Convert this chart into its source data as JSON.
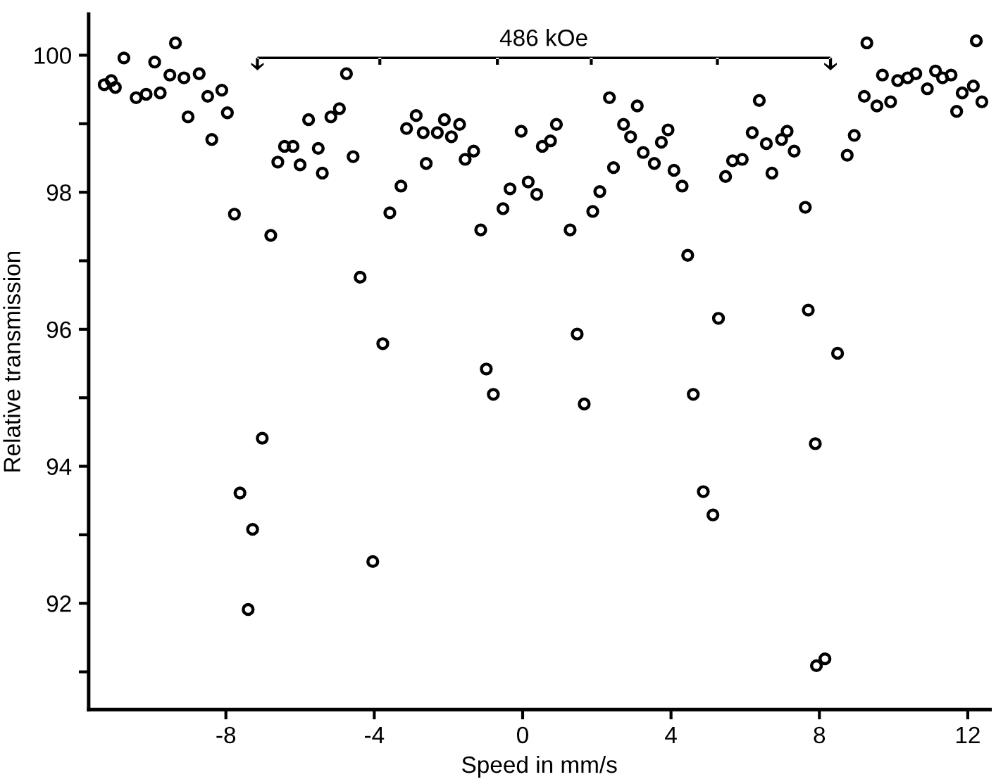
{
  "chart_data": {
    "type": "scatter",
    "xlabel": "Speed in mm/s",
    "ylabel": "Relative transmission",
    "annotations": [
      "486 kOe"
    ],
    "marker": "circle",
    "grid": false,
    "legend": false,
    "xlim": [
      -11.7,
      12.6
    ],
    "ylim": [
      90.45,
      100.6
    ],
    "xticks": [
      -8,
      -4,
      0,
      4,
      8,
      12
    ],
    "yticks": [
      {
        "value": 91,
        "label": null
      },
      92,
      {
        "value": 93,
        "label": null
      },
      94,
      {
        "value": 95,
        "label": null
      },
      96,
      {
        "value": 97,
        "label": null
      },
      98,
      {
        "value": 99,
        "label": null
      },
      100
    ],
    "series": [
      {
        "color": "#000000",
        "x": [
          -11.28,
          -11.09,
          -10.98,
          -10.75,
          -10.42,
          -10.15,
          -9.92,
          -9.77,
          -9.51,
          -9.36,
          -9.13,
          -9.02,
          -8.72,
          -8.49,
          -8.38,
          -8.11,
          -7.96,
          -7.77,
          -7.62,
          -7.4,
          -7.28,
          -7.02,
          -6.79,
          -6.6,
          -6.42,
          -6.19,
          -6.0,
          -5.77,
          -5.51,
          -5.4,
          -5.17,
          -4.94,
          -4.75,
          -4.57,
          -4.38,
          -4.04,
          -3.77,
          -3.58,
          -3.28,
          -3.13,
          -2.87,
          -2.68,
          -2.6,
          -2.3,
          -2.11,
          -1.92,
          -1.7,
          -1.55,
          -1.32,
          -1.13,
          -0.98,
          -0.79,
          -0.53,
          -0.34,
          -0.04,
          0.15,
          0.38,
          0.53,
          0.75,
          0.91,
          1.28,
          1.47,
          1.66,
          1.89,
          2.08,
          2.34,
          2.45,
          2.72,
          2.91,
          3.09,
          3.25,
          3.55,
          3.74,
          3.92,
          4.08,
          4.3,
          4.45,
          4.6,
          4.87,
          5.13,
          5.28,
          5.47,
          5.66,
          5.92,
          6.19,
          6.38,
          6.57,
          6.72,
          6.98,
          7.13,
          7.32,
          7.62,
          7.7,
          7.89,
          7.92,
          8.15,
          8.49,
          8.75,
          8.94,
          9.21,
          9.28,
          9.55,
          9.7,
          9.92,
          10.11,
          10.38,
          10.6,
          10.91,
          11.13,
          11.32,
          11.55,
          11.7,
          11.85,
          12.15,
          12.23,
          12.38
        ],
        "values": [
          99.57,
          99.63,
          99.53,
          99.96,
          99.38,
          99.43,
          99.9,
          99.45,
          99.71,
          100.18,
          99.67,
          99.1,
          99.73,
          99.4,
          98.77,
          99.49,
          99.16,
          97.68,
          93.61,
          91.91,
          93.08,
          94.41,
          97.37,
          98.44,
          98.67,
          98.67,
          98.4,
          99.06,
          98.64,
          98.28,
          99.1,
          99.22,
          99.73,
          98.52,
          96.76,
          92.61,
          95.79,
          97.7,
          98.09,
          98.93,
          99.12,
          98.87,
          98.42,
          98.87,
          99.06,
          98.81,
          98.99,
          98.48,
          98.6,
          97.45,
          95.42,
          95.05,
          97.76,
          98.05,
          98.89,
          98.15,
          97.97,
          98.67,
          98.75,
          98.99,
          97.45,
          95.93,
          94.91,
          97.72,
          98.01,
          99.38,
          98.36,
          98.99,
          98.81,
          99.26,
          98.58,
          98.42,
          98.73,
          98.91,
          98.32,
          98.09,
          97.08,
          95.05,
          93.63,
          93.29,
          96.16,
          98.23,
          98.46,
          98.48,
          98.87,
          99.34,
          98.71,
          98.28,
          98.77,
          98.89,
          98.6,
          97.78,
          96.28,
          94.33,
          91.09,
          91.19,
          95.65,
          98.54,
          98.83,
          99.4,
          100.18,
          99.26,
          99.71,
          99.32,
          99.63,
          99.67,
          99.73,
          99.51,
          99.77,
          99.67,
          99.71,
          99.18,
          99.45,
          99.55,
          100.21,
          99.32
        ]
      }
    ]
  }
}
